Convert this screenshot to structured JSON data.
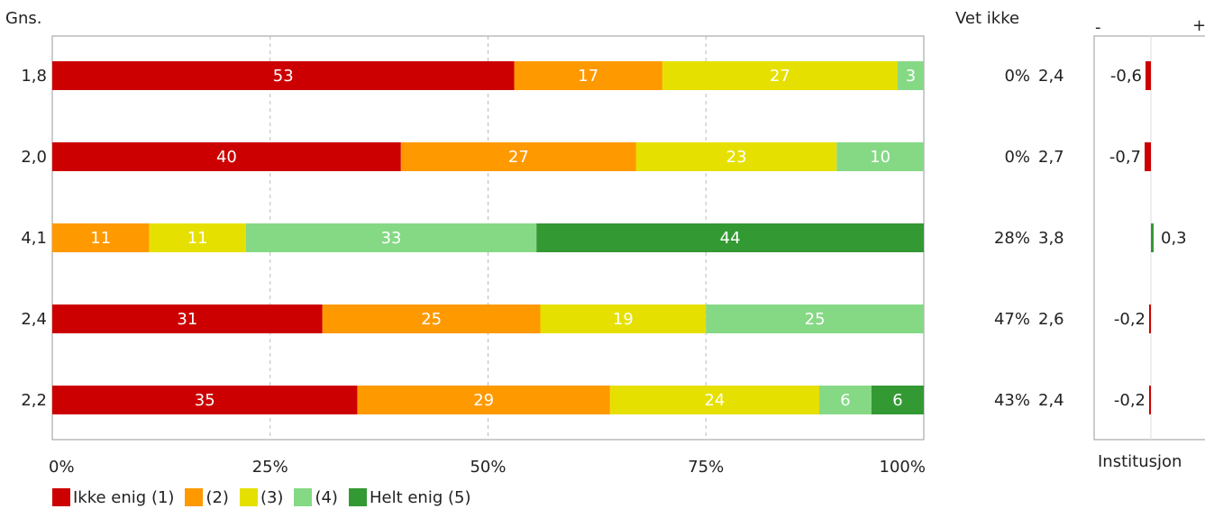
{
  "chart_data": {
    "type": "bar",
    "stacked": true,
    "orientation": "horizontal",
    "avg_header": "Gns.",
    "dontknow_header": "Vet ikke",
    "x_ticks": [
      "0%",
      "25%",
      "50%",
      "75%",
      "100%"
    ],
    "xlim": [
      0,
      100
    ],
    "grid": true,
    "rows": [
      {
        "avg": "1,8",
        "segments": [
          53,
          17,
          27,
          3,
          0
        ],
        "dontknow": "0%",
        "inst_avg": "2,4",
        "diff": -0.6,
        "diff_label": "-0,6"
      },
      {
        "avg": "2,0",
        "segments": [
          40,
          27,
          23,
          10,
          0
        ],
        "dontknow": "0%",
        "inst_avg": "2,7",
        "diff": -0.7,
        "diff_label": "-0,7"
      },
      {
        "avg": "4,1",
        "segments": [
          0,
          11,
          11,
          33,
          44
        ],
        "dontknow": "28%",
        "inst_avg": "3,8",
        "diff": 0.3,
        "diff_label": "0,3"
      },
      {
        "avg": "2,4",
        "segments": [
          31,
          25,
          19,
          25,
          0
        ],
        "dontknow": "47%",
        "inst_avg": "2,6",
        "diff": -0.2,
        "diff_label": "-0,2"
      },
      {
        "avg": "2,2",
        "segments": [
          35,
          29,
          24,
          6,
          6
        ],
        "dontknow": "43%",
        "inst_avg": "2,4",
        "diff": -0.2,
        "diff_label": "-0,2"
      }
    ],
    "series": [
      {
        "name": "Ikke enig (1)",
        "color": "#cc0000"
      },
      {
        "name": "(2)",
        "color": "#ff9900"
      },
      {
        "name": "(3)",
        "color": "#e6e000"
      },
      {
        "name": "(4)",
        "color": "#85d985"
      },
      {
        "name": "Helt enig (5)",
        "color": "#339933"
      }
    ],
    "diff_panel": {
      "minus_label": "-",
      "plus_label": "+",
      "footer": "Institusjon",
      "negative_color": "#cc0000",
      "positive_color": "#339933"
    },
    "legend_position": "bottom"
  }
}
